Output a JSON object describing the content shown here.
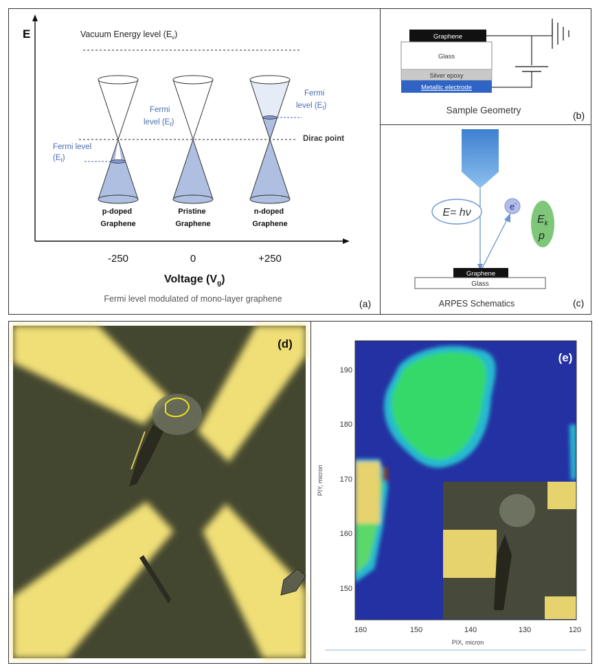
{
  "panel_a": {
    "e_axis": "E",
    "vacuum": "Vacuum Energy level (E",
    "vacuum_sub": "v",
    "dirac": "Dirac point",
    "fermi_left": [
      "Fermi level",
      "(E",
      "f",
      ")"
    ],
    "fermi_mid": [
      "Fermi",
      "level (E",
      "f",
      ")"
    ],
    "fermi_right": [
      "Fermi",
      "level (E",
      "f",
      ")"
    ],
    "cones": [
      {
        "line1": "p-doped",
        "line2": "Graphene",
        "tick": "-250"
      },
      {
        "line1": "Pristine",
        "line2": "Graphene",
        "tick": "0"
      },
      {
        "line1": "n-doped",
        "line2": "Graphene",
        "tick": "+250"
      }
    ],
    "xlabel": "Voltage  (V",
    "xlabel_sub": "g",
    "caption": "Fermi level modulated of mono-layer graphene",
    "tag": "(a)"
  },
  "panel_b": {
    "graphene": "Graphene",
    "glass": "Glass",
    "epoxy": "Silver epoxy",
    "electrode": "Metallic electrode",
    "caption": "Sample Geometry",
    "tag": "(b)"
  },
  "panel_c": {
    "photon": "E= hν",
    "electron": "e",
    "electron_sup": "-",
    "ek": "E",
    "ek_sub": "k",
    "p": "p",
    "graphene": "Graphene",
    "glass": "Glass",
    "caption": "ARPES Schematics",
    "tag": "(c)"
  },
  "panel_d": {
    "tag": "(d)"
  },
  "panel_e": {
    "tag": "(e)",
    "ylabel": "PIY, micron",
    "xlabel": "PIX, micron",
    "yticks": [
      "190",
      "180",
      "170",
      "160",
      "150"
    ],
    "xticks": [
      "160",
      "150",
      "140",
      "130",
      "120"
    ]
  },
  "colors": {
    "cone_fill": "#aebfe2",
    "fermi_text": "#4a6db0",
    "map_bg": "#2431a3",
    "map_green": "#36d96a",
    "gold": "#e6d36e",
    "substrate": "#44472f"
  }
}
